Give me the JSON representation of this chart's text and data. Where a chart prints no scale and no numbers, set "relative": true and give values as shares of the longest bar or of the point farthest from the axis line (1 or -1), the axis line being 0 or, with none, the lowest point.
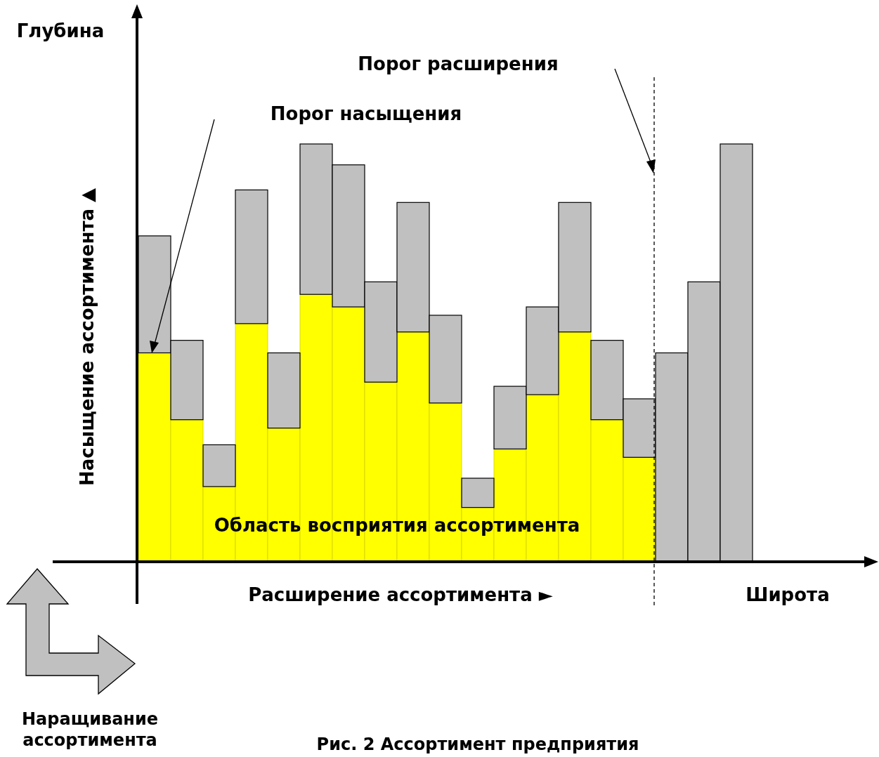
{
  "chart_data": {
    "type": "bar",
    "title": "Рис. 2 Ассортимент предприятия",
    "xlabel": "Расширение ассортимента ►",
    "ylabel": "Насыщение ассортимента ▲",
    "relative": true,
    "stacked": true,
    "categories": [
      null,
      null,
      null,
      null,
      null,
      null,
      null,
      null,
      null,
      null,
      null,
      null,
      null,
      null,
      null,
      null,
      null,
      null,
      null
    ],
    "series": [
      {
        "color": "#ffff00",
        "values": [
          0.5,
          0.34,
          0.18,
          0.57,
          0.32,
          0.64,
          0.61,
          0.43,
          0.55,
          0.38,
          0.13,
          0.27,
          0.4,
          0.55,
          0.34,
          0.25,
          null,
          null,
          null
        ]
      },
      {
        "color": "#c0c0c0",
        "values": [
          0.28,
          0.19,
          0.1,
          0.32,
          0.18,
          0.36,
          0.34,
          0.24,
          0.31,
          0.21,
          0.07,
          0.15,
          0.21,
          0.31,
          0.19,
          0.14,
          0.5,
          0.67,
          1
        ]
      }
    ],
    "annotations": [
      "Глубина",
      "Широта",
      "Порог насыщения",
      "Область восприятия ассортимента",
      "Наращивание ассортимента",
      "Порог расширения"
    ]
  }
}
